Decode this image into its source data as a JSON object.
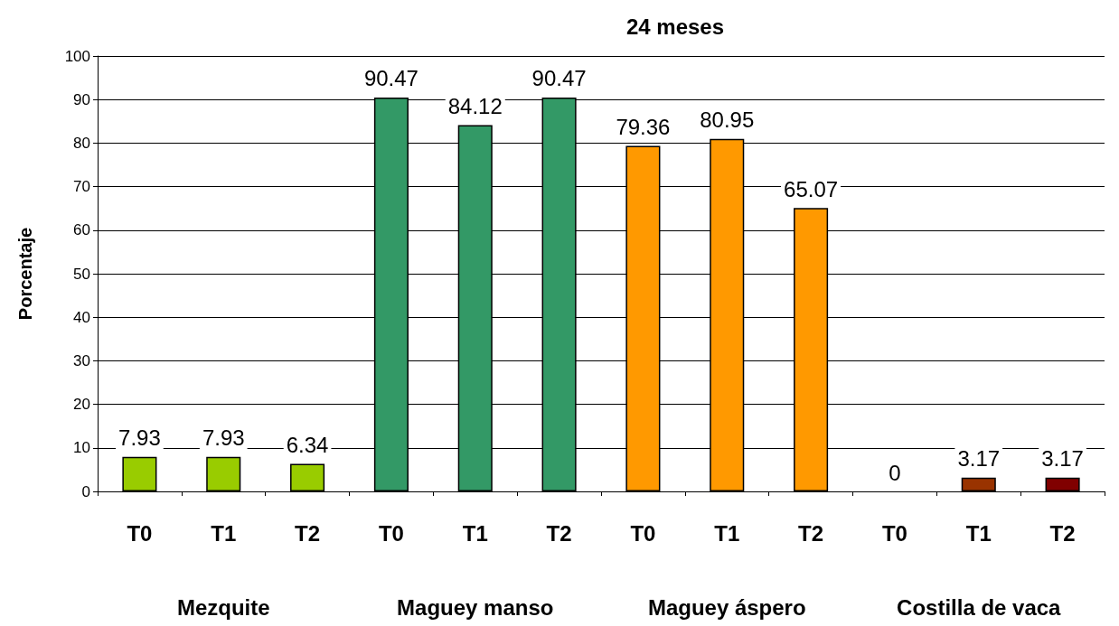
{
  "chart_data": {
    "type": "bar",
    "title": "24 meses",
    "ylabel": "Porcentaje",
    "categories": [
      "T0",
      "T1",
      "T2",
      "T0",
      "T1",
      "T2",
      "T0",
      "T1",
      "T2",
      "T0",
      "T1",
      "T2"
    ],
    "values": [
      7.93,
      7.93,
      6.34,
      90.47,
      84.12,
      90.47,
      79.36,
      80.95,
      65.07,
      0,
      3.17,
      3.17
    ],
    "colors": [
      "#99cc00",
      "#99cc00",
      "#99cc00",
      "#339966",
      "#339966",
      "#339966",
      "#ff9900",
      "#ff9900",
      "#ff9900",
      "#993300",
      "#993300",
      "#800000"
    ],
    "ylim": [
      0,
      100
    ],
    "yticks": [
      0,
      10,
      20,
      30,
      40,
      50,
      60,
      70,
      80,
      90,
      100
    ],
    "grid": "y",
    "data_labels": true,
    "annotations": [
      "Mezquite",
      "Maguey manso",
      "Maguey áspero",
      "Costilla de vaca"
    ]
  }
}
